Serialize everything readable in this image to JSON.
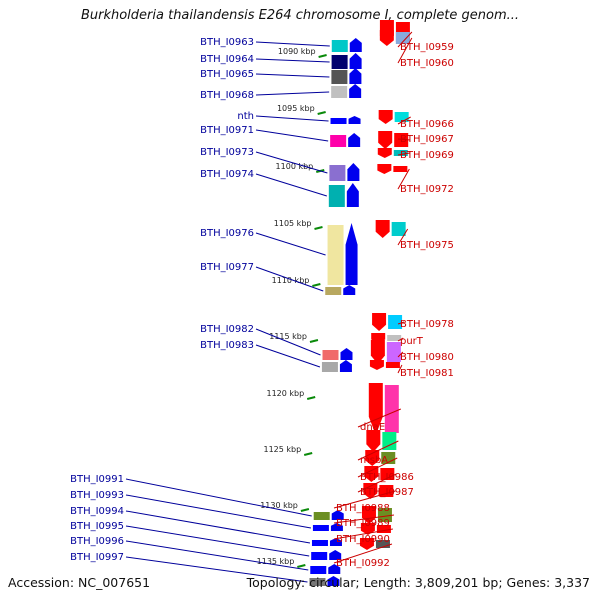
{
  "title": "Burkholderia thailandensis E264 chromosome I, complete genom...",
  "footer": {
    "accession": "Accession: NC_007651",
    "topology": "Topology: circular; Length: 3,809,201 bp; Genes: 3,337"
  },
  "colors": {
    "forward_label": "#00009b",
    "reverse_label": "#cc0000",
    "tick": "#0a8a0a",
    "backbone": "#8c8c8c"
  },
  "position_ticks": [
    {
      "label": "1090 kbp",
      "kbp": 1090
    },
    {
      "label": "1095 kbp",
      "kbp": 1095
    },
    {
      "label": "1100 kbp",
      "kbp": 1100
    },
    {
      "label": "1105 kbp",
      "kbp": 1105
    },
    {
      "label": "1110 kbp",
      "kbp": 1110
    },
    {
      "label": "1115 kbp",
      "kbp": 1115
    },
    {
      "label": "1120 kbp",
      "kbp": 1120
    },
    {
      "label": "1125 kbp",
      "kbp": 1125
    },
    {
      "label": "1130 kbp",
      "kbp": 1130
    },
    {
      "label": "1135 kbp",
      "kbp": 1135
    }
  ],
  "forward_genes": [
    {
      "name": "BTH_I0963",
      "block_color": "#00c8c8"
    },
    {
      "name": "BTH_I0964",
      "block_color": "#00006e"
    },
    {
      "name": "BTH_I0965",
      "block_color": "#555555"
    },
    {
      "name": "BTH_I0968",
      "block_color": "#c0c0c0"
    },
    {
      "name": "nth",
      "block_color": "#0000ff"
    },
    {
      "name": "BTH_I0971",
      "block_color": "#ff00aa"
    },
    {
      "name": "BTH_I0973",
      "block_color": "#8a6fd0"
    },
    {
      "name": "BTH_I0974",
      "block_color": "#00b0b0"
    },
    {
      "name": "BTH_I0976",
      "block_color": "#f0e6a0"
    },
    {
      "name": "BTH_I0977",
      "block_color": "#b8a860"
    },
    {
      "name": "BTH_I0982",
      "block_color": "#f06a6a"
    },
    {
      "name": "BTH_I0983",
      "block_color": "#a8a8a8"
    },
    {
      "name": "BTH_I0991",
      "block_color": "#6b8e23"
    },
    {
      "name": "BTH_I0993",
      "block_color": "#0000ff"
    },
    {
      "name": "BTH_I0994",
      "block_color": "#0000ff"
    },
    {
      "name": "BTH_I0995",
      "block_color": "#0000ff"
    },
    {
      "name": "BTH_I0996",
      "block_color": "#0000ff"
    },
    {
      "name": "BTH_I0997",
      "block_color": "#777777"
    }
  ],
  "reverse_genes": [
    {
      "name": "BTH_I0959",
      "block_color": "#ff0000"
    },
    {
      "name": "BTH_I0960",
      "block_color": "#88aadd"
    },
    {
      "name": "BTH_I0966",
      "block_color": "#00dddd"
    },
    {
      "name": "BTH_I0967",
      "block_color": "#ff0000"
    },
    {
      "name": "BTH_I0969",
      "block_color": "#00bbbb"
    },
    {
      "name": "BTH_I0972",
      "block_color": "#ff0000"
    },
    {
      "name": "BTH_I0975",
      "block_color": "#00cccc"
    },
    {
      "name": "BTH_I0978",
      "block_color": "#00ccff"
    },
    {
      "name": "purT",
      "block_color": "#c0c0c0"
    },
    {
      "name": "BTH_I0980",
      "block_color": "#cc66ff"
    },
    {
      "name": "BTH_I0981",
      "block_color": "#ff0000"
    },
    {
      "name": "dnaE",
      "block_color": "#ff33aa"
    },
    {
      "name": "msbA",
      "block_color": "#00ee88"
    },
    {
      "name": "BTH_I0986",
      "block_color": "#6b8e23"
    },
    {
      "name": "BTH_I0987",
      "block_color": "#ff0000"
    },
    {
      "name": "BTH_I0988",
      "block_color": "#ff0000"
    },
    {
      "name": "BTH_I0989",
      "block_color": "#6b8e23"
    },
    {
      "name": "BTH_I0990",
      "block_color": "#ff0000"
    },
    {
      "name": "BTH_I0992",
      "block_color": "#555555"
    }
  ]
}
